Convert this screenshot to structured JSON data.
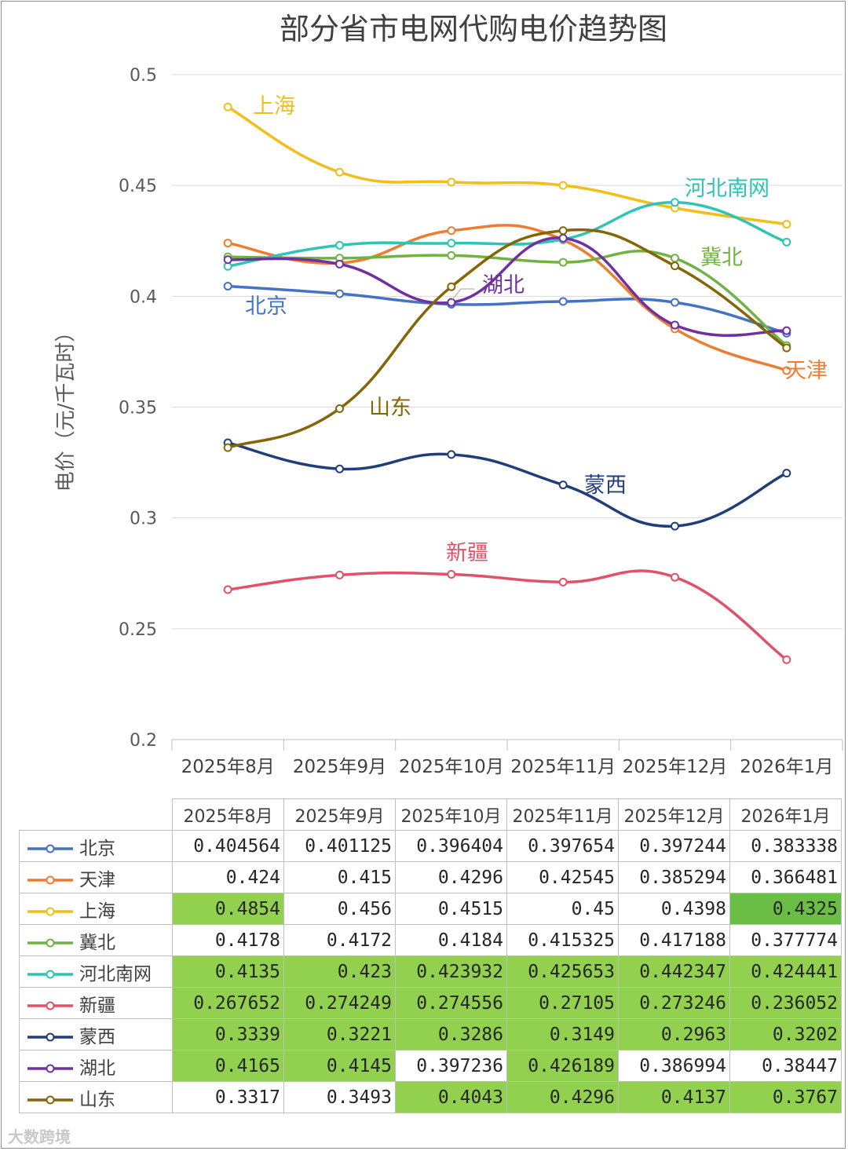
{
  "chart_data": {
    "type": "line",
    "title": "部分省市电网代购电价趋势图",
    "xlabel": "",
    "ylabel": "电价（元/千瓦时）",
    "ylim": [
      0.2,
      0.5
    ],
    "yticks": [
      "0.5",
      "0.45",
      "0.4",
      "0.35",
      "0.3",
      "0.25",
      "0.2"
    ],
    "categories": [
      "2025年8月",
      "2025年9月",
      "2025年10月",
      "2025年11月",
      "2025年12月",
      "2026年1月"
    ],
    "series": [
      {
        "name": "北京",
        "color": "#4472C4",
        "values": [
          0.404564,
          0.401125,
          0.396404,
          0.397654,
          0.397244,
          0.383338
        ],
        "display": [
          "0.404564",
          "0.401125",
          "0.396404",
          "0.397654",
          "0.397244",
          "0.383338"
        ],
        "highlight": [
          false,
          false,
          false,
          false,
          false,
          false
        ]
      },
      {
        "name": "天津",
        "color": "#ED7D31",
        "values": [
          0.424,
          0.415,
          0.4296,
          0.42545,
          0.385294,
          0.366481
        ],
        "display": [
          "0.424",
          "0.415",
          "0.4296",
          "0.42545",
          "0.385294",
          "0.366481"
        ],
        "highlight": [
          false,
          false,
          false,
          false,
          false,
          false
        ]
      },
      {
        "name": "上海",
        "color": "#F2BE1A",
        "values": [
          0.4854,
          0.456,
          0.4515,
          0.45,
          0.4398,
          0.4325
        ],
        "display": [
          "0.4854",
          "0.456",
          "0.4515",
          "0.45",
          "0.4398",
          "0.4325"
        ],
        "highlight": [
          true,
          false,
          false,
          false,
          false,
          true
        ]
      },
      {
        "name": "冀北",
        "color": "#70B343",
        "values": [
          0.4178,
          0.4172,
          0.4184,
          0.415325,
          0.417188,
          0.377774
        ],
        "display": [
          "0.4178",
          "0.4172",
          "0.4184",
          "0.415325",
          "0.417188",
          "0.377774"
        ],
        "highlight": [
          false,
          false,
          false,
          false,
          false,
          false
        ]
      },
      {
        "name": "河北南网",
        "color": "#2EC4B6",
        "values": [
          0.4135,
          0.423,
          0.423932,
          0.425653,
          0.442347,
          0.424441
        ],
        "display": [
          "0.4135",
          "0.423",
          "0.423932",
          "0.425653",
          "0.442347",
          "0.424441"
        ],
        "highlight": [
          true,
          true,
          true,
          true,
          true,
          true
        ]
      },
      {
        "name": "新疆",
        "color": "#E0526A",
        "values": [
          0.267652,
          0.274249,
          0.274556,
          0.27105,
          0.273246,
          0.236052
        ],
        "display": [
          "0.267652",
          "0.274249",
          "0.274556",
          "0.27105",
          "0.273246",
          "0.236052"
        ],
        "highlight": [
          true,
          true,
          true,
          true,
          true,
          true
        ]
      },
      {
        "name": "蒙西",
        "color": "#1F3E7A",
        "values": [
          0.3339,
          0.3221,
          0.3286,
          0.3149,
          0.2963,
          0.3202
        ],
        "display": [
          "0.3339",
          "0.3221",
          "0.3286",
          "0.3149",
          "0.2963",
          "0.3202"
        ],
        "highlight": [
          true,
          true,
          true,
          true,
          true,
          true
        ]
      },
      {
        "name": "湖北",
        "color": "#7030A0",
        "values": [
          0.4165,
          0.4145,
          0.397236,
          0.426189,
          0.386994,
          0.38447
        ],
        "display": [
          "0.4165",
          "0.4145",
          "0.397236",
          "0.426189",
          "0.386994",
          "0.38447"
        ],
        "highlight": [
          true,
          true,
          false,
          true,
          false,
          false
        ]
      },
      {
        "name": "山东",
        "color": "#846606",
        "values": [
          0.3317,
          0.3493,
          0.4043,
          0.4296,
          0.4137,
          0.3767
        ],
        "display": [
          "0.3317",
          "0.3493",
          "0.4043",
          "0.4296",
          "0.4137",
          "0.3767"
        ],
        "highlight": [
          false,
          false,
          true,
          true,
          true,
          true
        ]
      }
    ],
    "annotations": [
      "上海",
      "河北南网",
      "冀北",
      "湖北",
      "北京",
      "天津",
      "山东",
      "蒙西",
      "新疆"
    ]
  },
  "colors": {
    "highlight": "#92D050",
    "highlight_dark": "#6BBE45",
    "grid": "#D9D9D9"
  },
  "watermark": "大数跨境"
}
